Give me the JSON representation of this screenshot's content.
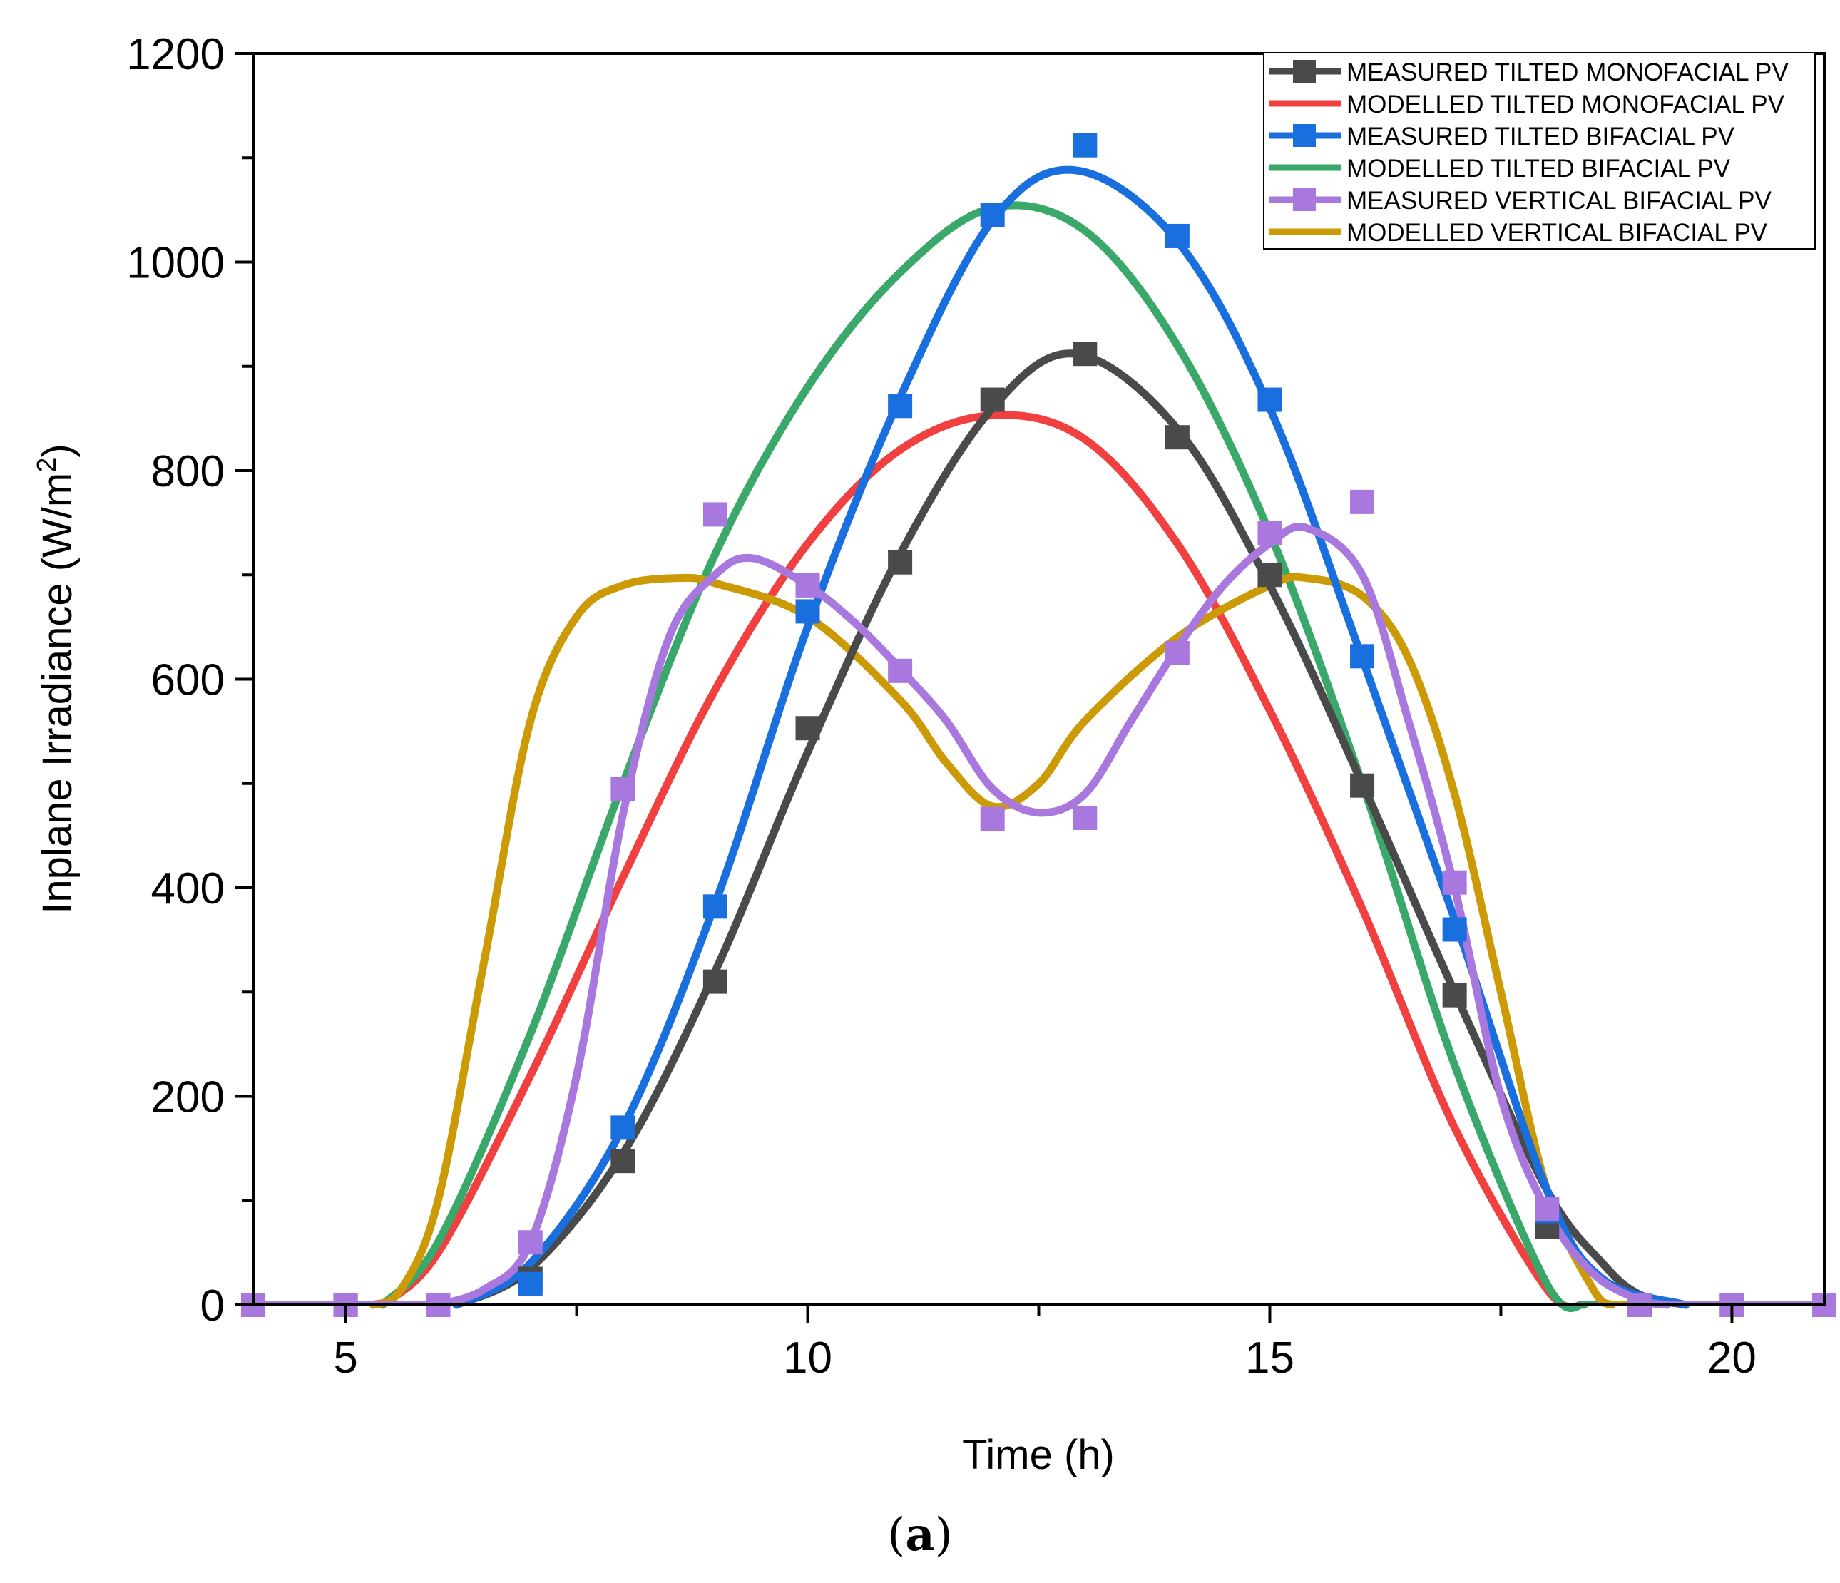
{
  "chart_data": {
    "type": "line",
    "title": "",
    "xlabel": "Time (h)",
    "ylabel_main": "Inplane Irradiance (W/m",
    "ylabel_sup": "2",
    "ylabel_close": ")",
    "xlim": [
      4,
      21
    ],
    "ylim": [
      0,
      1200
    ],
    "x_major_ticks": [
      5,
      10,
      15,
      20
    ],
    "x_minor_ticks": [
      7.5,
      12.5,
      17.5
    ],
    "y_major_ticks": [
      0,
      200,
      400,
      600,
      800,
      1000,
      1200
    ],
    "y_minor_ticks": [
      100,
      300,
      500,
      700,
      900,
      1100
    ],
    "legend_position": "top-right",
    "series": [
      {
        "name": "MEASURED TILTED MONOFACIAL PV",
        "color": "#4a4a4a",
        "markers": true,
        "x": [
          4,
          5,
          6,
          7,
          8,
          9,
          10,
          11,
          12,
          13,
          14,
          15,
          16,
          17,
          18,
          19,
          20,
          21
        ],
        "values": [
          0,
          0,
          0,
          25,
          138,
          310,
          553,
          712,
          868,
          912,
          832,
          700,
          498,
          297,
          75,
          0,
          0,
          0
        ],
        "curve_x": [
          6.2,
          7,
          8,
          9,
          10,
          11,
          12,
          12.9,
          14,
          15,
          16,
          17,
          18,
          18.6,
          19,
          19.5
        ],
        "curve_y": [
          0,
          35,
          145,
          320,
          530,
          720,
          860,
          912,
          840,
          690,
          500,
          300,
          110,
          40,
          10,
          0
        ]
      },
      {
        "name": "MODELLED TILTED MONOFACIAL PV",
        "color": "#f04040",
        "markers": false,
        "curve_x": [
          5.4,
          6,
          7,
          8,
          9,
          10,
          11,
          12,
          13,
          14,
          15,
          16,
          17,
          18,
          18.4
        ],
        "curve_y": [
          0,
          50,
          220,
          410,
          590,
          730,
          820,
          853,
          830,
          730,
          570,
          380,
          170,
          15,
          0
        ]
      },
      {
        "name": "MEASURED TILTED BIFACIAL PV",
        "color": "#1a6fdf",
        "markers": true,
        "x": [
          4,
          5,
          6,
          7,
          8,
          9,
          10,
          11,
          12,
          13,
          14,
          15,
          16,
          17,
          18,
          19,
          20,
          21
        ],
        "values": [
          0,
          0,
          0,
          20,
          170,
          382,
          665,
          862,
          1045,
          1112,
          1025,
          868,
          622,
          360,
          90,
          0,
          0,
          0
        ],
        "curve_x": [
          6.2,
          7,
          8,
          9,
          10,
          11,
          12,
          12.9,
          14,
          15,
          16,
          17,
          18,
          18.6,
          19.5
        ],
        "curve_y": [
          0,
          40,
          170,
          385,
          650,
          870,
          1040,
          1088,
          1020,
          860,
          620,
          370,
          110,
          25,
          0
        ]
      },
      {
        "name": "MODELLED TILTED BIFACIAL PV",
        "color": "#3aa86a",
        "markers": false,
        "curve_x": [
          5.4,
          6,
          7,
          8,
          9,
          10,
          11,
          12,
          13,
          14,
          15,
          16,
          17,
          18,
          18.4
        ],
        "curve_y": [
          0,
          60,
          260,
          500,
          720,
          880,
          990,
          1052,
          1030,
          920,
          740,
          500,
          230,
          20,
          0
        ]
      },
      {
        "name": "MEASURED VERTICAL BIFACIAL PV",
        "color": "#a978de",
        "markers": true,
        "x": [
          4,
          5,
          6,
          7,
          8,
          9,
          10,
          11,
          12,
          13,
          14,
          15,
          16,
          17,
          18,
          19,
          20,
          21
        ],
        "values": [
          0,
          0,
          0,
          60,
          495,
          758,
          690,
          608,
          466,
          467,
          625,
          740,
          770,
          405,
          92,
          0,
          0,
          0
        ],
        "curve_x": [
          6,
          6.5,
          7,
          7.5,
          8,
          8.5,
          9,
          9.4,
          10,
          10.5,
          11,
          11.5,
          12,
          12.5,
          13,
          13.5,
          14,
          14.5,
          15,
          15.4,
          16,
          16.5,
          17,
          17.5,
          18,
          18.5,
          19,
          19.3
        ],
        "curve_y": [
          0,
          15,
          60,
          220,
          470,
          640,
          700,
          716,
          690,
          655,
          610,
          560,
          495,
          472,
          490,
          560,
          630,
          690,
          730,
          745,
          700,
          560,
          400,
          200,
          90,
          30,
          5,
          0
        ]
      },
      {
        "name": "MODELLED VERTICAL BIFACIAL PV",
        "color": "#cc9a06",
        "markers": false,
        "curve_x": [
          5.3,
          5.6,
          6,
          6.5,
          7,
          7.5,
          8,
          8.6,
          9,
          10,
          11,
          11.5,
          12,
          12.5,
          13,
          14,
          15,
          15.4,
          16,
          16.5,
          17,
          17.5,
          18,
          18.5,
          18.7
        ],
        "curve_y": [
          0,
          15,
          100,
          330,
          560,
          660,
          690,
          697,
          692,
          660,
          580,
          520,
          478,
          500,
          560,
          640,
          690,
          697,
          680,
          620,
          490,
          300,
          110,
          15,
          0
        ]
      }
    ]
  },
  "caption": {
    "open": "(",
    "label": "a",
    "close": ")"
  }
}
